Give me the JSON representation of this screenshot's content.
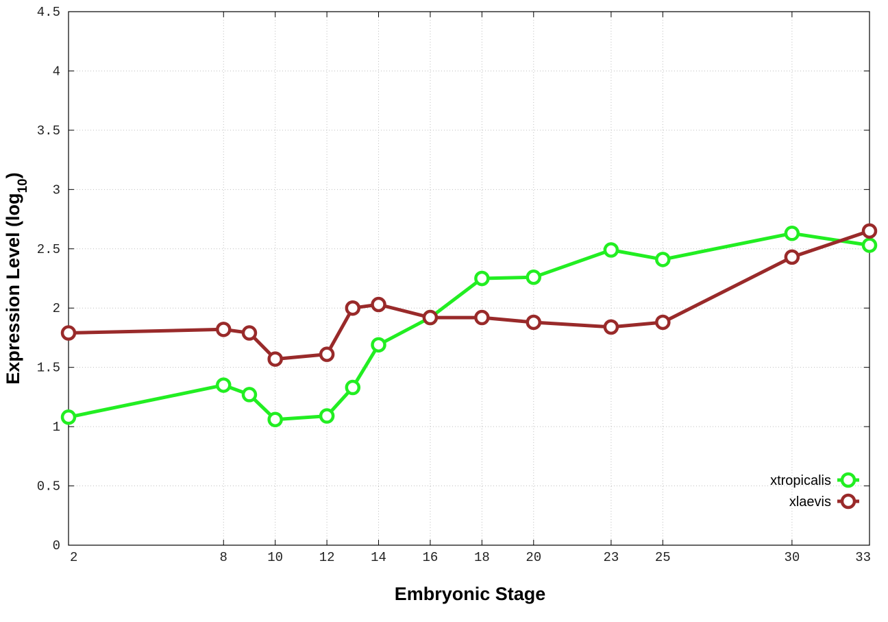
{
  "chart_data": {
    "type": "line",
    "xlabel": "Embryonic Stage",
    "ylabel_main": "Expression Level (log",
    "ylabel_sub": "10",
    "ylabel_close": ")",
    "x_ticks": [
      2,
      8,
      10,
      12,
      14,
      16,
      18,
      20,
      23,
      25,
      30,
      33
    ],
    "y_ticks": [
      "0",
      "0.5",
      "1",
      "1.5",
      "2",
      "2.5",
      "3",
      "3.5",
      "4",
      "4.5"
    ],
    "xlim": [
      2,
      33
    ],
    "ylim": [
      0,
      4.5
    ],
    "grid": true,
    "legend_position": "bottom-right",
    "series": [
      {
        "name": "xtropicalis",
        "color": "#22ee22",
        "x": [
          2,
          8,
          9,
          10,
          12,
          13,
          14,
          16,
          18,
          20,
          23,
          25,
          30,
          33
        ],
        "y": [
          1.08,
          1.35,
          1.27,
          1.06,
          1.09,
          1.33,
          1.69,
          1.92,
          2.25,
          2.26,
          2.49,
          2.41,
          2.63,
          2.53
        ]
      },
      {
        "name": "xlaevis",
        "color": "#992a2a",
        "x": [
          2,
          8,
          9,
          10,
          12,
          13,
          14,
          16,
          18,
          20,
          23,
          25,
          30,
          33
        ],
        "y": [
          1.79,
          1.82,
          1.79,
          1.57,
          1.61,
          2.0,
          2.03,
          1.92,
          1.92,
          1.88,
          1.84,
          1.88,
          2.43,
          2.65
        ]
      }
    ]
  }
}
